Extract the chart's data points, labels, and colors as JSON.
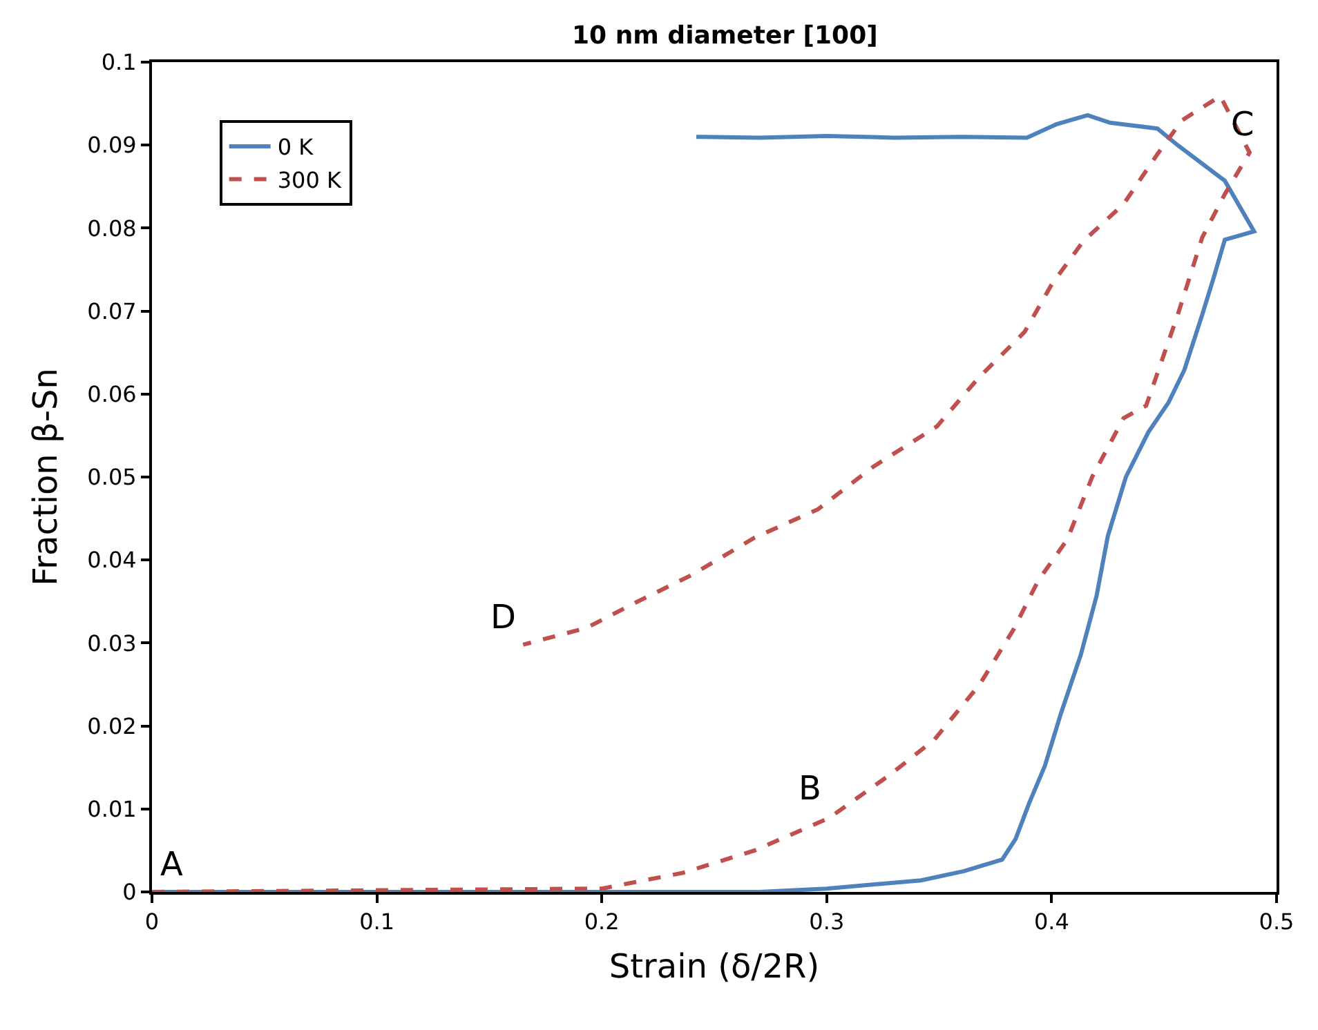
{
  "chart_data": {
    "type": "line",
    "title": "10 nm diameter [100]",
    "xlabel": "Strain (δ/2R)",
    "ylabel": "Fraction β-Sn",
    "xlim": [
      0,
      0.5
    ],
    "xticks": [
      0,
      0.1,
      0.2,
      0.3,
      0.4,
      0.5
    ],
    "ylim": [
      0,
      0.1
    ],
    "yticks": [
      0,
      0.01,
      0.02,
      0.03,
      0.04,
      0.05,
      0.06,
      0.07,
      0.08,
      0.09,
      0.1
    ],
    "legend": "top left",
    "marker": "none",
    "series": [
      {
        "name": "0 K",
        "color": "#4f81bd",
        "line_style": "solid",
        "x": [
          0,
          0.27,
          0.3,
          0.342,
          0.361,
          0.378,
          0.384,
          0.39,
          0.397,
          0.404,
          0.413,
          0.42,
          0.425,
          0.433,
          0.443,
          0.452,
          0.459,
          0.467,
          0.472,
          0.477,
          0.49,
          0.477,
          0.456,
          0.447,
          0.426,
          0.416,
          0.402,
          0.389,
          0.36,
          0.33,
          0.3,
          0.27,
          0.242
        ],
        "values": [
          0,
          0,
          0.0004,
          0.0014,
          0.0025,
          0.0039,
          0.0064,
          0.0107,
          0.0152,
          0.0214,
          0.0286,
          0.0357,
          0.0429,
          0.05,
          0.0554,
          0.059,
          0.0629,
          0.0696,
          0.074,
          0.0786,
          0.0796,
          0.0857,
          0.09,
          0.092,
          0.0927,
          0.0936,
          0.0925,
          0.0909,
          0.091,
          0.0909,
          0.0911,
          0.0909,
          0.091
        ]
      },
      {
        "name": "300 K",
        "color": "#c0504d",
        "line_style": "dashed",
        "x": [
          0,
          0.2,
          0.236,
          0.268,
          0.301,
          0.329,
          0.348,
          0.368,
          0.383,
          0.394,
          0.407,
          0.418,
          0.432,
          0.442,
          0.456,
          0.467,
          0.477,
          0.488,
          0.475,
          0.458,
          0.447,
          0.432,
          0.414,
          0.4,
          0.388,
          0.367,
          0.349,
          0.321,
          0.296,
          0.268,
          0.24,
          0.216,
          0.193,
          0.165
        ],
        "values": [
          0,
          0.0004,
          0.0023,
          0.005,
          0.0089,
          0.0143,
          0.0184,
          0.025,
          0.0316,
          0.0375,
          0.0425,
          0.05,
          0.0571,
          0.0586,
          0.0695,
          0.0789,
          0.0841,
          0.0891,
          0.0959,
          0.093,
          0.0889,
          0.0829,
          0.0784,
          0.0732,
          0.0675,
          0.0618,
          0.0561,
          0.0513,
          0.0461,
          0.0427,
          0.0382,
          0.035,
          0.0318,
          0.0298
        ]
      }
    ],
    "annotations": [
      {
        "text": "A",
        "x": 0,
        "y": 0
      },
      {
        "text": "B",
        "x": 0.301,
        "y": 0.0089
      },
      {
        "text": "C",
        "x": 0.475,
        "y": 0.0959
      },
      {
        "text": "D",
        "x": 0.165,
        "y": 0.0298
      }
    ]
  }
}
